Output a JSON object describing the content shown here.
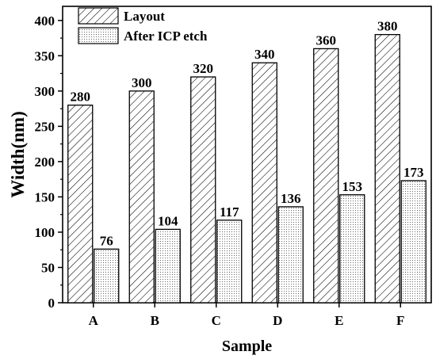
{
  "chart_data": {
    "type": "bar",
    "categories": [
      "A",
      "B",
      "C",
      "D",
      "E",
      "F"
    ],
    "series": [
      {
        "name": "Layout",
        "values": [
          280,
          300,
          320,
          340,
          360,
          380
        ],
        "pattern": "diagonal-hatch"
      },
      {
        "name": "After ICP etch",
        "values": [
          76,
          104,
          117,
          136,
          153,
          173
        ],
        "pattern": "dots"
      }
    ],
    "title": "",
    "xlabel": "Sample",
    "ylabel": "Width(nm)",
    "ylim": [
      0,
      420
    ],
    "yticks": [
      0,
      50,
      100,
      150,
      200,
      250,
      300,
      350,
      400
    ],
    "grid": false,
    "legend_position": "top-left",
    "colors": {
      "bar_fill": "#ffffff",
      "bar_stroke": "#000000",
      "hatch": "#000000",
      "dots": "#555555"
    }
  }
}
